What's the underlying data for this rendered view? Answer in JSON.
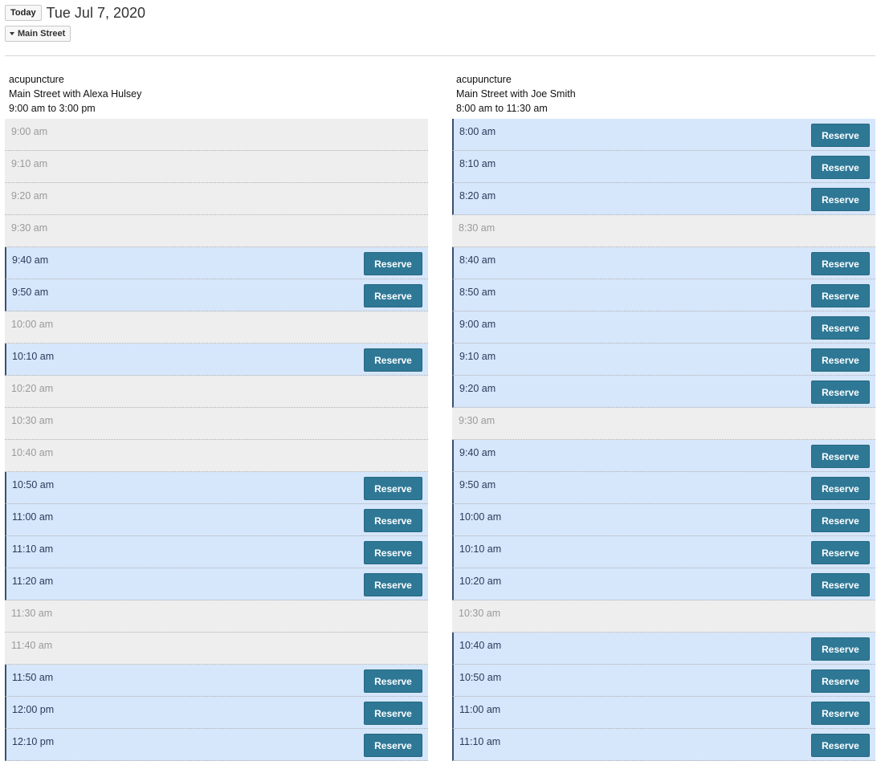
{
  "toolbar": {
    "today_label": "Today",
    "date": "Tue Jul 7, 2020",
    "location_label": "Main Street"
  },
  "reserve_label": "Reserve",
  "columns": [
    {
      "service": "acupuncture",
      "provider": "Main Street with Alexa Hulsey",
      "hours": "9:00 am to 3:00 pm",
      "slots": [
        {
          "time": "9:00 am",
          "available": false
        },
        {
          "time": "9:10 am",
          "available": false
        },
        {
          "time": "9:20 am",
          "available": false
        },
        {
          "time": "9:30 am",
          "available": false
        },
        {
          "time": "9:40 am",
          "available": true
        },
        {
          "time": "9:50 am",
          "available": true
        },
        {
          "time": "10:00 am",
          "available": false
        },
        {
          "time": "10:10 am",
          "available": true
        },
        {
          "time": "10:20 am",
          "available": false
        },
        {
          "time": "10:30 am",
          "available": false
        },
        {
          "time": "10:40 am",
          "available": false
        },
        {
          "time": "10:50 am",
          "available": true
        },
        {
          "time": "11:00 am",
          "available": true
        },
        {
          "time": "11:10 am",
          "available": true
        },
        {
          "time": "11:20 am",
          "available": true
        },
        {
          "time": "11:30 am",
          "available": false
        },
        {
          "time": "11:40 am",
          "available": false
        },
        {
          "time": "11:50 am",
          "available": true
        },
        {
          "time": "12:00 pm",
          "available": true
        },
        {
          "time": "12:10 pm",
          "available": true
        }
      ]
    },
    {
      "service": "acupuncture",
      "provider": "Main Street with Joe Smith",
      "hours": "8:00 am to 11:30 am",
      "slots": [
        {
          "time": "8:00 am",
          "available": true
        },
        {
          "time": "8:10 am",
          "available": true
        },
        {
          "time": "8:20 am",
          "available": true
        },
        {
          "time": "8:30 am",
          "available": false
        },
        {
          "time": "8:40 am",
          "available": true
        },
        {
          "time": "8:50 am",
          "available": true
        },
        {
          "time": "9:00 am",
          "available": true
        },
        {
          "time": "9:10 am",
          "available": true
        },
        {
          "time": "9:20 am",
          "available": true
        },
        {
          "time": "9:30 am",
          "available": false
        },
        {
          "time": "9:40 am",
          "available": true
        },
        {
          "time": "9:50 am",
          "available": true
        },
        {
          "time": "10:00 am",
          "available": true
        },
        {
          "time": "10:10 am",
          "available": true
        },
        {
          "time": "10:20 am",
          "available": true
        },
        {
          "time": "10:30 am",
          "available": false
        },
        {
          "time": "10:40 am",
          "available": true
        },
        {
          "time": "10:50 am",
          "available": true
        },
        {
          "time": "11:00 am",
          "available": true
        },
        {
          "time": "11:10 am",
          "available": true
        }
      ]
    }
  ]
}
